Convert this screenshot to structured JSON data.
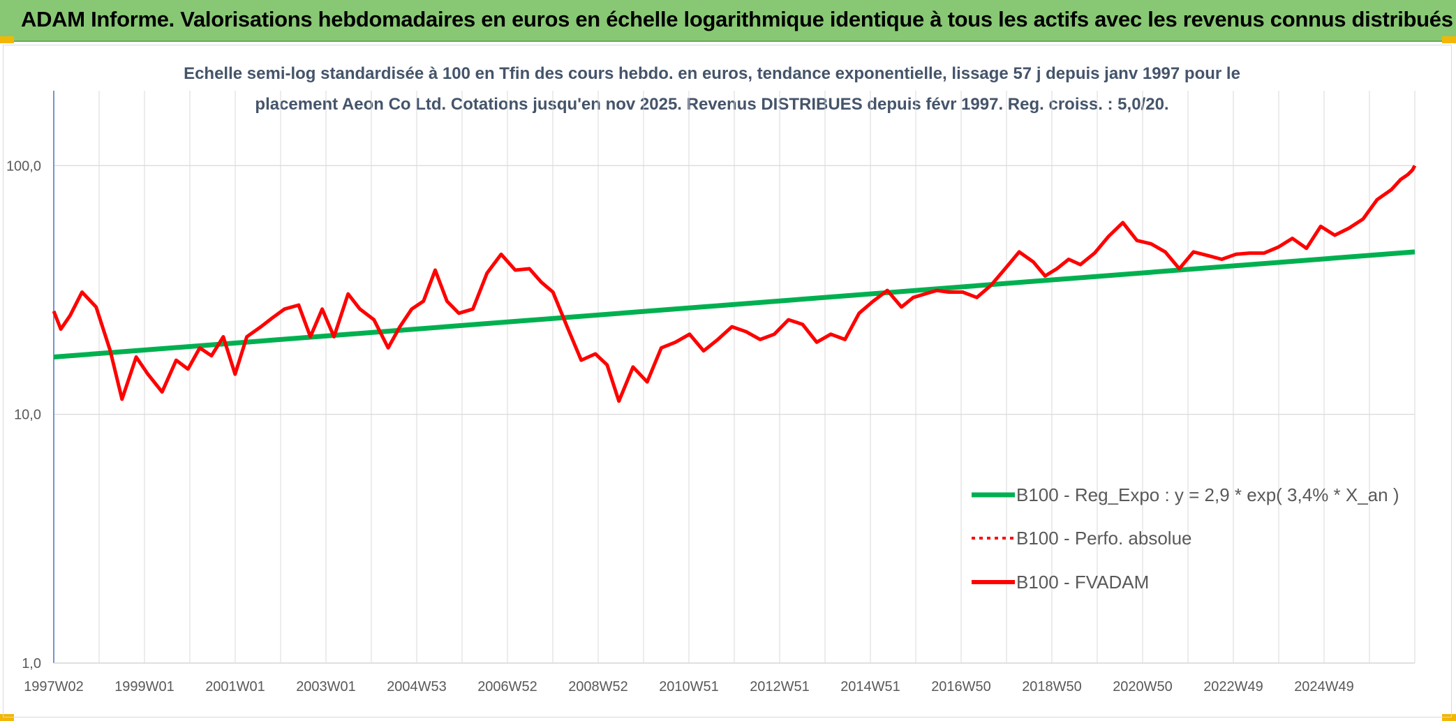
{
  "header": {
    "title": "ADAM Informe. Valorisations hebdomadaires en euros en échelle logarithmique identique à tous les actifs avec les revenus connus distribués"
  },
  "colors": {
    "header_bg": "#88c874",
    "regression": "#00b050",
    "series": "#ff0000",
    "subtitle": "#44546a",
    "grid": "#d9d9d9"
  },
  "chart_data": {
    "type": "line",
    "title_line1": "Echelle semi-log standardisée à 100 en Tfin des cours hebdo. en euros, tendance exponentielle, lissage 57 j depuis janv 1997 pour le",
    "title_line2": "placement Aeon Co Ltd. Cotations jusqu'en nov 2025. Revenus DISTRIBUES depuis févr 1997. Reg. croiss. : 5,0/20.",
    "y_scale": "log",
    "ylim": [
      1,
      200
    ],
    "y_ticks": [
      "1,0",
      "10,0",
      "100,0"
    ],
    "x_range": [
      1997.0,
      2025.9
    ],
    "x_ticks": [
      "1997W02",
      "1999W01",
      "2001W01",
      "2003W01",
      "2004W53",
      "2006W52",
      "2008W52",
      "2010W51",
      "2012W51",
      "2014W51",
      "2016W50",
      "2018W50",
      "2020W50",
      "2022W49",
      "2024W49"
    ],
    "grid": true,
    "legend_position": "bottom-right",
    "legend": [
      "B100 - Reg_Expo : y = 2,9 * exp( 3,4% *  X_an )",
      "B100 - Perfo. absolue",
      "B100 - FVADAM"
    ],
    "series": [
      {
        "name": "B100 - Reg_Expo : y = 2,9 * exp( 3,4% *  X_an )",
        "style": "solid",
        "x": [
          1997.0,
          2025.9
        ],
        "y": [
          17.0,
          45.0
        ]
      },
      {
        "name": "B100 - FVADAM",
        "style": "solid",
        "x": [
          1997.0,
          1997.15,
          1997.35,
          1997.6,
          1997.9,
          1998.2,
          1998.45,
          1998.75,
          1999.0,
          1999.3,
          1999.6,
          1999.85,
          2000.1,
          2000.35,
          2000.6,
          2000.85,
          2001.1,
          2001.4,
          2001.65,
          2001.9,
          2002.2,
          2002.45,
          2002.7,
          2002.95,
          2003.25,
          2003.5,
          2003.8,
          2004.1,
          2004.35,
          2004.6,
          2004.85,
          2005.1,
          2005.35,
          2005.6,
          2005.9,
          2006.2,
          2006.5,
          2006.8,
          2007.1,
          2007.35,
          2007.6,
          2007.9,
          2008.2,
          2008.5,
          2008.75,
          2009.0,
          2009.3,
          2009.6,
          2009.9,
          2010.2,
          2010.5,
          2010.8,
          2011.1,
          2011.4,
          2011.7,
          2012.0,
          2012.3,
          2012.6,
          2012.9,
          2013.2,
          2013.5,
          2013.8,
          2014.1,
          2014.4,
          2014.7,
          2015.0,
          2015.25,
          2015.5,
          2015.75,
          2016.0,
          2016.3,
          2016.6,
          2016.9,
          2017.2,
          2017.5,
          2017.8,
          2018.05,
          2018.3,
          2018.55,
          2018.8,
          2019.1,
          2019.4,
          2019.7,
          2020.0,
          2020.3,
          2020.6,
          2020.9,
          2021.2,
          2021.5,
          2021.8,
          2022.1,
          2022.4,
          2022.7,
          2023.0,
          2023.3,
          2023.6,
          2023.9,
          2024.2,
          2024.5,
          2024.8,
          2025.1,
          2025.4,
          2025.6,
          2025.75,
          2025.85,
          2025.9
        ],
        "y": [
          26,
          22,
          25,
          31,
          27,
          18,
          11.5,
          17,
          14.5,
          12.3,
          16.5,
          15.2,
          18.5,
          17.2,
          20.5,
          14.5,
          20.5,
          22.5,
          24.5,
          26.5,
          27.5,
          20.5,
          26.5,
          20.5,
          30.5,
          26.5,
          24,
          18.5,
          22.5,
          26.5,
          28.5,
          38,
          28.5,
          25.5,
          26.5,
          37,
          44,
          38,
          38.5,
          34,
          31,
          22.5,
          16.5,
          17.5,
          15.8,
          11.3,
          15.5,
          13.5,
          18.5,
          19.5,
          21,
          18,
          20,
          22.5,
          21.5,
          20,
          21,
          24,
          23,
          19.5,
          21,
          20,
          25.5,
          28.5,
          31.5,
          27,
          29.5,
          30.5,
          31.5,
          31,
          31,
          29.5,
          33,
          38.5,
          45,
          41,
          36,
          38.5,
          42,
          40,
          44.5,
          52,
          59,
          50,
          48.5,
          45,
          38.5,
          45,
          43.5,
          42,
          44,
          44.5,
          44.5,
          47,
          51,
          46.5,
          57,
          52.5,
          56,
          61,
          73,
          80,
          88,
          92,
          96,
          100
        ]
      }
    ]
  }
}
